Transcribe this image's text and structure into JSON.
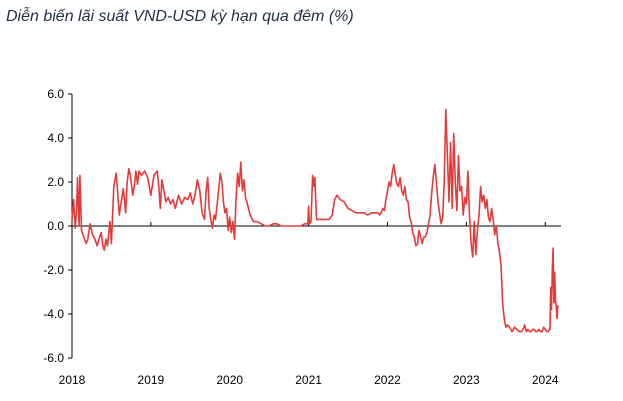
{
  "chart_data": {
    "type": "line",
    "title": "Diễn biến lãi suất VND-USD kỳ hạn qua đêm (%)",
    "xlabel": "",
    "ylabel": "",
    "xlim": [
      2018.0,
      2024.2
    ],
    "ylim": [
      -6.0,
      6.0
    ],
    "y_ticks": [
      "6.0",
      "4.0",
      "2.0",
      "0.0",
      "-2.0",
      "-4.0",
      "-6.0"
    ],
    "x_ticks": [
      "2018",
      "2019",
      "2020",
      "2021",
      "2022",
      "2023",
      "2024"
    ],
    "grid": false,
    "legend": "none",
    "line_color": "#e23b3b",
    "series": [
      {
        "x": [
          2018.0,
          2018.02,
          2018.04,
          2018.06,
          2018.07,
          2018.09,
          2018.1,
          2018.12,
          2018.15,
          2018.18,
          2018.2,
          2018.23,
          2018.26,
          2018.29,
          2018.32,
          2018.35,
          2018.37,
          2018.39,
          2018.41,
          2018.43,
          2018.45,
          2018.48,
          2018.5,
          2018.53,
          2018.56,
          2018.58,
          2018.6,
          2018.62,
          2018.65,
          2018.68,
          2018.7,
          2018.72,
          2018.74,
          2018.77,
          2018.79,
          2018.81,
          2018.83,
          2018.85,
          2018.88,
          2018.92,
          2018.96,
          2019.0,
          2019.04,
          2019.08,
          2019.1,
          2019.12,
          2019.14,
          2019.16,
          2019.19,
          2019.22,
          2019.25,
          2019.28,
          2019.31,
          2019.35,
          2019.39,
          2019.43,
          2019.47,
          2019.5,
          2019.53,
          2019.56,
          2019.59,
          2019.62,
          2019.65,
          2019.68,
          2019.7,
          2019.72,
          2019.74,
          2019.76,
          2019.78,
          2019.8,
          2019.82,
          2019.85,
          2019.88,
          2019.9,
          2019.92,
          2019.94,
          2019.96,
          2019.98,
          2020.0,
          2020.02,
          2020.04,
          2020.06,
          2020.08,
          2020.1,
          2020.12,
          2020.14,
          2020.16,
          2020.18,
          2020.2,
          2020.23,
          2020.26,
          2020.3,
          2020.35,
          2020.4,
          2020.45,
          2020.5,
          2020.55,
          2020.6,
          2020.65,
          2020.7,
          2020.75,
          2020.8,
          2020.85,
          2020.9,
          2020.95,
          2020.99,
          2021.0,
          2021.01,
          2021.03,
          2021.05,
          2021.07,
          2021.08,
          2021.1,
          2021.12,
          2021.14,
          2021.18,
          2021.22,
          2021.26,
          2021.28,
          2021.3,
          2021.33,
          2021.36,
          2021.4,
          2021.45,
          2021.5,
          2021.55,
          2021.6,
          2021.65,
          2021.7,
          2021.75,
          2021.8,
          2021.85,
          2021.88,
          2021.9,
          2021.92,
          2021.94,
          2021.96,
          2021.98,
          2022.0,
          2022.02,
          2022.04,
          2022.06,
          2022.08,
          2022.1,
          2022.12,
          2022.14,
          2022.16,
          2022.18,
          2022.2,
          2022.22,
          2022.24,
          2022.26,
          2022.28,
          2022.3,
          2022.32,
          2022.34,
          2022.36,
          2022.38,
          2022.4,
          2022.42,
          2022.44,
          2022.46,
          2022.48,
          2022.5,
          2022.52,
          2022.54,
          2022.56,
          2022.58,
          2022.6,
          2022.62,
          2022.64,
          2022.66,
          2022.68,
          2022.7,
          2022.72,
          2022.74,
          2022.76,
          2022.78,
          2022.8,
          2022.82,
          2022.84,
          2022.86,
          2022.88,
          2022.9,
          2022.92,
          2022.94,
          2022.96,
          2022.98,
          2023.0,
          2023.02,
          2023.04,
          2023.06,
          2023.08,
          2023.1,
          2023.12,
          2023.14,
          2023.16,
          2023.18,
          2023.2,
          2023.22,
          2023.24,
          2023.26,
          2023.28,
          2023.3,
          2023.32,
          2023.34,
          2023.36,
          2023.38,
          2023.4,
          2023.42,
          2023.44,
          2023.46,
          2023.48,
          2023.5,
          2023.52,
          2023.55,
          2023.58,
          2023.61,
          2023.64,
          2023.67,
          2023.7,
          2023.72,
          2023.74,
          2023.76,
          2023.78,
          2023.8,
          2023.82,
          2023.84,
          2023.86,
          2023.88,
          2023.9,
          2023.92,
          2023.94,
          2023.96,
          2023.98,
          2024.0,
          2024.02,
          2024.04,
          2024.05,
          2024.06,
          2024.07,
          2024.08,
          2024.09,
          2024.1,
          2024.11,
          2024.12,
          2024.13,
          2024.14,
          2024.15,
          2024.16
        ],
        "y": [
          0.3,
          1.2,
          -0.1,
          0.8,
          2.2,
          0.0,
          2.3,
          -0.2,
          -0.5,
          -0.8,
          -0.6,
          0.1,
          -0.4,
          -0.6,
          -0.9,
          -0.5,
          -0.3,
          -0.9,
          -1.1,
          -0.6,
          -0.9,
          0.2,
          -0.8,
          1.8,
          2.4,
          1.5,
          0.5,
          1.0,
          1.7,
          0.6,
          2.0,
          2.6,
          2.3,
          1.4,
          1.8,
          2.5,
          1.9,
          2.5,
          2.3,
          2.5,
          2.2,
          1.4,
          2.3,
          2.5,
          1.8,
          0.8,
          2.1,
          1.7,
          1.1,
          1.3,
          1.0,
          1.2,
          0.8,
          1.4,
          1.0,
          1.3,
          1.2,
          1.5,
          1.0,
          1.4,
          2.1,
          1.6,
          0.6,
          0.3,
          1.6,
          2.2,
          0.8,
          0.3,
          -0.1,
          0.5,
          0.3,
          1.3,
          2.4,
          2.0,
          1.1,
          0.6,
          0.8,
          -0.2,
          0.4,
          -0.3,
          0.2,
          -0.6,
          1.3,
          2.4,
          1.8,
          2.9,
          1.6,
          2.1,
          1.3,
          0.9,
          0.5,
          0.2,
          0.2,
          0.1,
          0.0,
          0.0,
          0.1,
          0.1,
          0.0,
          0.0,
          0.0,
          0.0,
          0.0,
          0.0,
          0.1,
          0.1,
          0.9,
          0.1,
          0.2,
          2.3,
          1.8,
          2.2,
          0.3,
          0.3,
          0.3,
          0.3,
          0.3,
          0.3,
          0.4,
          0.5,
          1.2,
          1.4,
          1.2,
          1.1,
          0.8,
          0.7,
          0.6,
          0.6,
          0.6,
          0.5,
          0.6,
          0.6,
          0.6,
          0.5,
          0.6,
          0.8,
          0.7,
          1.2,
          1.6,
          2.0,
          1.8,
          2.4,
          2.8,
          2.3,
          1.9,
          1.8,
          2.2,
          1.6,
          1.4,
          1.8,
          1.2,
          1.1,
          0.4,
          0.2,
          -0.3,
          -0.5,
          -0.9,
          -0.8,
          -0.2,
          -0.5,
          -0.8,
          -0.5,
          -0.5,
          -0.3,
          0.1,
          0.5,
          1.5,
          2.2,
          2.8,
          2.0,
          1.1,
          0.6,
          0.1,
          0.4,
          2.1,
          5.3,
          3.2,
          1.1,
          3.8,
          0.8,
          4.2,
          2.0,
          0.7,
          3.2,
          1.6,
          1.8,
          0.5,
          1.3,
          1.0,
          2.5,
          0.5,
          -0.8,
          -1.4,
          0.2,
          -1.3,
          -0.2,
          0.5,
          1.8,
          1.1,
          1.4,
          0.8,
          1.2,
          0.4,
          0.2,
          0.8,
          0.3,
          -0.4,
          0.0,
          -0.8,
          -1.2,
          -1.8,
          -3.5,
          -4.2,
          -4.6,
          -4.5,
          -4.6,
          -4.8,
          -4.6,
          -4.7,
          -4.8,
          -4.8,
          -4.7,
          -4.5,
          -4.8,
          -4.7,
          -4.8,
          -4.8,
          -4.7,
          -4.7,
          -4.8,
          -4.8,
          -4.7,
          -4.8,
          -4.8,
          -4.6,
          -4.7,
          -4.8,
          -4.8,
          -4.7,
          -4.7,
          -2.8,
          -3.8,
          -2.0,
          -1.0,
          -3.5,
          -2.1,
          -3.4,
          -3.7,
          -4.2,
          -3.6
        ]
      }
    ]
  }
}
